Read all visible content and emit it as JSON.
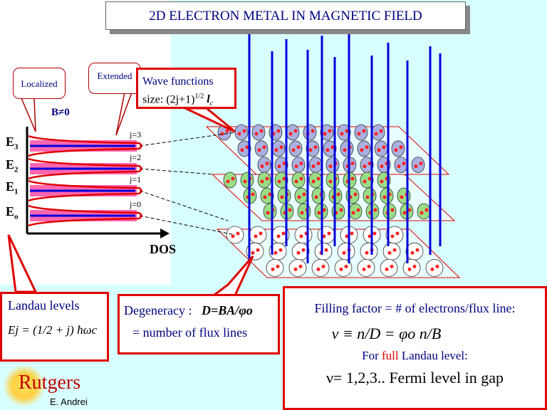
{
  "title": "2D ELECTRON METAL IN MAGNETIC FIELD",
  "dos": {
    "b_label": "B≠0",
    "axis_label": "DOS",
    "levels": [
      "E3",
      "E2",
      "E1",
      "Eo"
    ],
    "level_subs": [
      "3",
      "2",
      "1",
      "o"
    ],
    "j_labels": [
      "j=3",
      "j=2",
      "j=1",
      "j=0"
    ]
  },
  "callouts": {
    "localized": "Localized",
    "extended": "Extended",
    "wave_title": "Wave functions",
    "wave_size": "size: (2j+1)",
    "wave_exp": "1/2",
    "wave_l": "l",
    "wave_sub": "c"
  },
  "landau": {
    "title": "Landau levels",
    "formula": "Ej = (1/2 + j) ħωc"
  },
  "degeneracy": {
    "label": "Degeneracy :",
    "formula": "D=BA/φo",
    "line2": "=  number of flux lines"
  },
  "filling": {
    "line1": "Filling factor = # of electrons/flux line:",
    "formula": "ν ≡ n/D = φo n/B",
    "full_pre": "For ",
    "full_word": "full",
    "full_post": " Landau level:",
    "line3": "ν= 1,2,3.. Fermi level in gap"
  },
  "logo": {
    "name": "Rutgers",
    "author": "E. Andrei"
  },
  "colors": {
    "navy": "#000080",
    "red": "#e00000",
    "blue": "#0000dd",
    "pink": "#ff3399"
  }
}
